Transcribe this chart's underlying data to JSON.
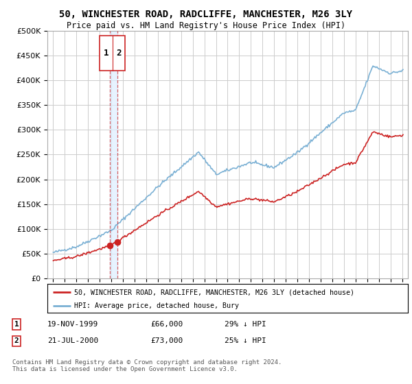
{
  "title": "50, WINCHESTER ROAD, RADCLIFFE, MANCHESTER, M26 3LY",
  "subtitle": "Price paid vs. HM Land Registry's House Price Index (HPI)",
  "legend_line1": "50, WINCHESTER ROAD, RADCLIFFE, MANCHESTER, M26 3LY (detached house)",
  "legend_line2": "HPI: Average price, detached house, Bury",
  "footer": "Contains HM Land Registry data © Crown copyright and database right 2024.\nThis data is licensed under the Open Government Licence v3.0.",
  "sale1_date": "19-NOV-1999",
  "sale1_price": "£66,000",
  "sale1_hpi": "29% ↓ HPI",
  "sale2_date": "21-JUL-2000",
  "sale2_price": "£73,000",
  "sale2_hpi": "25% ↓ HPI",
  "red_color": "#cc2222",
  "blue_color": "#7ab0d4",
  "shade_color": "#ddeeff",
  "grid_color": "#cccccc",
  "background_color": "#ffffff",
  "sale1_year": 1999.88,
  "sale2_year": 2000.55,
  "sale1_value": 66000,
  "sale2_value": 73000,
  "ylim": [
    0,
    500000
  ],
  "xlim_start": 1994.5,
  "xlim_end": 2025.5
}
